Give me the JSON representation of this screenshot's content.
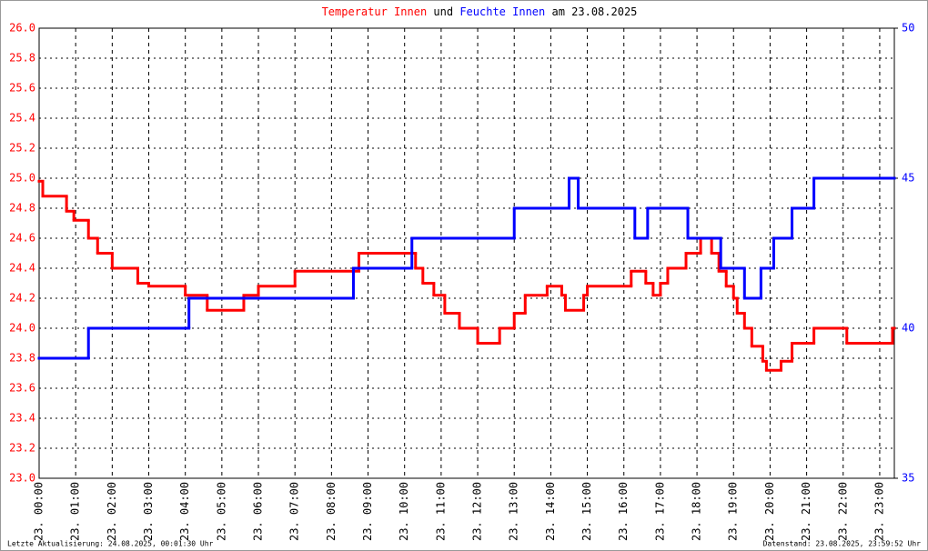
{
  "chart_data": {
    "type": "line",
    "step": "post",
    "title": {
      "connector": "und",
      "date": "am 23.08.2025"
    },
    "footer": {
      "left": "Letzte Aktualisierung: 24.08.2025, 00:01:30 Uhr",
      "right": "Datenstand: 23.08.2025, 23:59:52 Uhr"
    },
    "xlim": [
      0,
      23.4
    ],
    "xticks": [
      {
        "value": 0,
        "label": "23. 00:00"
      },
      {
        "value": 1,
        "label": "23. 01:00"
      },
      {
        "value": 2,
        "label": "23. 02:00"
      },
      {
        "value": 3,
        "label": "23. 03:00"
      },
      {
        "value": 4,
        "label": "23. 04:00"
      },
      {
        "value": 5,
        "label": "23. 05:00"
      },
      {
        "value": 6,
        "label": "23. 06:00"
      },
      {
        "value": 7,
        "label": "23. 07:00"
      },
      {
        "value": 8,
        "label": "23. 08:00"
      },
      {
        "value": 9,
        "label": "23. 09:00"
      },
      {
        "value": 10,
        "label": "23. 10:00"
      },
      {
        "value": 11,
        "label": "23. 11:00"
      },
      {
        "value": 12,
        "label": "23. 12:00"
      },
      {
        "value": 13,
        "label": "23. 13:00"
      },
      {
        "value": 14,
        "label": "23. 14:00"
      },
      {
        "value": 15,
        "label": "23. 15:00"
      },
      {
        "value": 16,
        "label": "23. 16:00"
      },
      {
        "value": 17,
        "label": "23. 17:00"
      },
      {
        "value": 18,
        "label": "23. 18:00"
      },
      {
        "value": 19,
        "label": "23. 19:00"
      },
      {
        "value": 20,
        "label": "23. 20:00"
      },
      {
        "value": 21,
        "label": "23. 21:00"
      },
      {
        "value": 22,
        "label": "23. 22:00"
      },
      {
        "value": 23,
        "label": "23. 23:00"
      }
    ],
    "ylim": [
      23.0,
      26.0
    ],
    "yticks": [
      {
        "value": 23.0,
        "label": "23.0"
      },
      {
        "value": 23.2,
        "label": "23.2"
      },
      {
        "value": 23.4,
        "label": "23.4"
      },
      {
        "value": 23.6,
        "label": "23.6"
      },
      {
        "value": 23.8,
        "label": "23.8"
      },
      {
        "value": 24.0,
        "label": "24.0"
      },
      {
        "value": 24.2,
        "label": "24.2"
      },
      {
        "value": 24.4,
        "label": "24.4"
      },
      {
        "value": 24.6,
        "label": "24.6"
      },
      {
        "value": 24.8,
        "label": "24.8"
      },
      {
        "value": 25.0,
        "label": "25.0"
      },
      {
        "value": 25.2,
        "label": "25.2"
      },
      {
        "value": 25.4,
        "label": "25.4"
      },
      {
        "value": 25.6,
        "label": "25.6"
      },
      {
        "value": 25.8,
        "label": "25.8"
      },
      {
        "value": 26.0,
        "label": "26.0"
      }
    ],
    "y2lim": [
      35,
      50
    ],
    "y2ticks": [
      35,
      40,
      45,
      50
    ],
    "grid": true,
    "series": [
      {
        "name": "Temperatur Innen",
        "color": "#ff0000",
        "x": [
          0,
          0.1,
          0.75,
          0.95,
          1.35,
          1.6,
          2.0,
          2.7,
          3.0,
          4.0,
          4.6,
          5.6,
          6.0,
          7.0,
          8.75,
          10.3,
          10.5,
          10.8,
          11.1,
          11.5,
          12.0,
          12.6,
          13.0,
          13.3,
          13.9,
          14.3,
          14.4,
          14.9,
          15.0,
          16.2,
          16.6,
          16.8,
          17.0,
          17.2,
          17.7,
          18.1,
          18.4,
          18.6,
          18.8,
          19.0,
          19.1,
          19.3,
          19.5,
          19.8,
          19.9,
          20.3,
          20.6,
          21.2,
          22.1,
          23.35,
          23.4
        ],
        "values": [
          24.98,
          24.88,
          24.78,
          24.72,
          24.6,
          24.5,
          24.4,
          24.3,
          24.28,
          24.22,
          24.12,
          24.22,
          24.28,
          24.38,
          24.5,
          24.4,
          24.3,
          24.22,
          24.1,
          24.0,
          23.9,
          24.0,
          24.1,
          24.22,
          24.28,
          24.22,
          24.12,
          24.22,
          24.28,
          24.38,
          24.3,
          24.22,
          24.3,
          24.4,
          24.5,
          24.6,
          24.5,
          24.38,
          24.28,
          24.2,
          24.1,
          24.0,
          23.88,
          23.78,
          23.72,
          23.78,
          23.9,
          24.0,
          23.9,
          24.0,
          24.0
        ]
      },
      {
        "name": "Feuchte Innen",
        "color": "#0000ff",
        "axis": "y2",
        "x": [
          0,
          1.35,
          4.1,
          8.6,
          10.2,
          13.0,
          14.5,
          14.75,
          16.3,
          16.65,
          17.75,
          18.65,
          19.3,
          19.75,
          20.1,
          20.6,
          21.2,
          23.4
        ],
        "values": [
          39,
          40,
          41,
          42,
          43,
          44,
          45,
          44,
          43,
          44,
          43,
          42,
          41,
          42,
          43,
          44,
          45,
          45
        ]
      }
    ]
  }
}
